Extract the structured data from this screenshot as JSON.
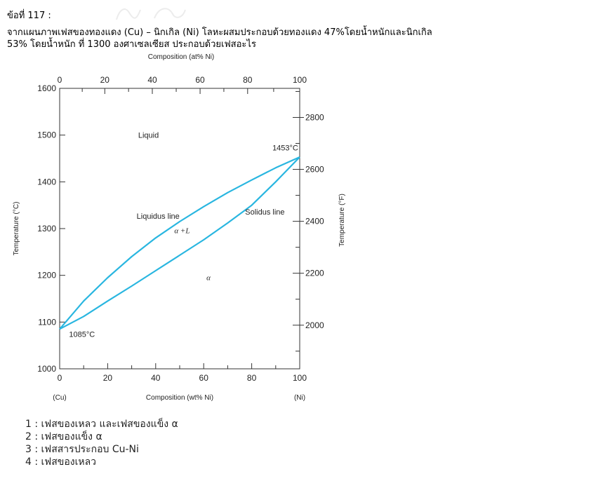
{
  "question": {
    "number": "ข้อที่ 117 :",
    "line1": "จากแผนภาพเฟสของทองแดง (Cu) – นิกเกิล (Ni) โลหะผสมประกอบด้วยทองแดง 47%โดยน้ำหนักและนิกเกิล",
    "line2": "53% โดยน้ำหนัก ที่ 1300 องศาเซลเซียส ประกอบด้วยเฟสอะไร"
  },
  "chart_data": {
    "type": "line",
    "title": "",
    "top_axis_label": "Composition (at% Ni)",
    "top_ticks": [
      "0",
      "20",
      "40",
      "60",
      "80",
      "100"
    ],
    "xlabel": "Composition (wt% Ni)",
    "x_ticks": [
      "0",
      "20",
      "40",
      "60",
      "80",
      "100"
    ],
    "x_end_labels": [
      "(Cu)",
      "(Ni)"
    ],
    "xlim": [
      0,
      100
    ],
    "ylabel": "Temperature (°C)",
    "y_ticks": [
      "1000",
      "1100",
      "1200",
      "1300",
      "1400",
      "1500",
      "1600"
    ],
    "ylim": [
      1000,
      1600
    ],
    "right_axis_label": "Temperature (°F)",
    "right_ticks": [
      "2000",
      "2200",
      "2400",
      "2600",
      "2800"
    ],
    "right_tick_values_f": [
      2000,
      2200,
      2400,
      2600,
      2800
    ],
    "line_color": "#29b6e0",
    "series": [
      {
        "name": "Liquidus line",
        "x": [
          0,
          10,
          20,
          30,
          40,
          50,
          60,
          70,
          80,
          90,
          100
        ],
        "y": [
          1085,
          1145,
          1195,
          1240,
          1280,
          1315,
          1347,
          1377,
          1404,
          1430,
          1453
        ]
      },
      {
        "name": "Solidus line",
        "x": [
          0,
          10,
          20,
          30,
          40,
          50,
          60,
          70,
          80,
          90,
          100
        ],
        "y": [
          1085,
          1112,
          1145,
          1177,
          1210,
          1243,
          1276,
          1312,
          1350,
          1400,
          1453
        ]
      }
    ],
    "annotations": {
      "liquid": "Liquid",
      "alpha_l": "α +L",
      "alpha": "α",
      "melt_ni": "1453°C",
      "melt_cu": "1085°C",
      "liquidus": "Liquidus line",
      "solidus": "Solidus line"
    },
    "grid": false,
    "legend": "none"
  },
  "choices": [
    "1 : เฟสของเหลว และเฟสของแข็ง α",
    "2 : เฟสของแข็ง α",
    "3 : เฟสสารประกอบ Cu-Ni",
    "4 : เฟสของเหลว"
  ]
}
